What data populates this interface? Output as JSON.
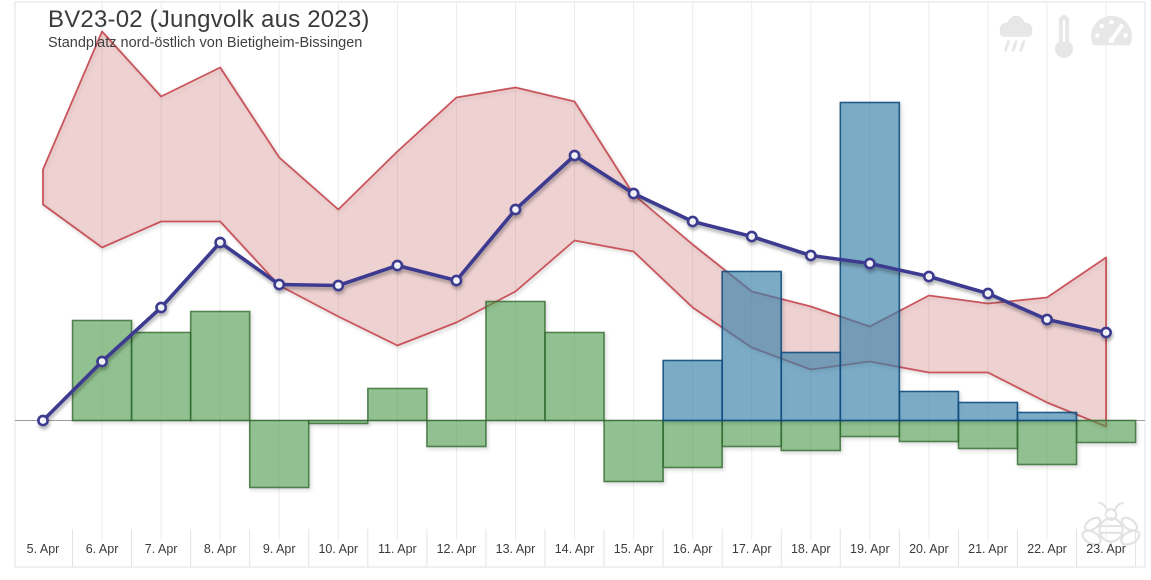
{
  "header": {
    "title": "BV23-02 (Jungvolk aus 2023)",
    "subtitle": "Standplatz nord-östlich von Bietigheim-Bissingen"
  },
  "toolbar": {
    "icons": [
      "rain-icon",
      "thermometer-icon",
      "gauge-icon"
    ]
  },
  "watermark": {
    "icon": "bee-icon"
  },
  "chart_data": {
    "type": "composite",
    "categories": [
      "5. Apr",
      "6. Apr",
      "7. Apr",
      "8. Apr",
      "9. Apr",
      "10. Apr",
      "11. Apr",
      "12. Apr",
      "13. Apr",
      "14. Apr",
      "15. Apr",
      "16. Apr",
      "17. Apr",
      "18. Apr",
      "19. Apr",
      "20. Apr",
      "21. Apr",
      "22. Apr",
      "23. Apr"
    ],
    "y_axis_visible": false,
    "baseline_value": 0,
    "unit_note": "no y-axis labels visible; values are relative chart units above/below the baseline",
    "series": [
      {
        "id": "range-band",
        "type": "area-band",
        "stroke": "#c9545b",
        "fill": "rgba(203,90,95,0.24)",
        "upper": [
          251,
          389,
          324,
          353,
          263,
          211,
          269,
          323,
          333,
          319,
          226,
          176,
          129,
          114,
          94,
          125,
          117,
          123,
          163
        ],
        "lower": [
          216,
          173,
          199,
          199,
          135,
          104,
          75,
          98,
          129,
          180,
          169,
          113,
          73,
          51,
          59,
          48,
          48,
          18,
          -6
        ]
      },
      {
        "id": "green-bars",
        "type": "bar",
        "fill": "rgba(76,158,74,0.55)",
        "stroke": "rgba(47,104,45,0.78)",
        "values": [
          0,
          100,
          88,
          109,
          -67,
          -3,
          32,
          -26,
          119,
          88,
          -61,
          -47,
          -26,
          -30,
          -16,
          -21,
          -28,
          -44,
          -22
        ]
      },
      {
        "id": "blue-bars",
        "type": "bar",
        "fill": "rgba(62,132,175,0.62)",
        "stroke": "rgba(13,74,124,0.88)",
        "values": [
          0,
          0,
          0,
          0,
          0,
          0,
          0,
          0,
          0,
          0,
          0,
          60,
          149,
          68,
          318,
          29,
          18,
          8,
          0
        ]
      },
      {
        "id": "trend-line",
        "type": "line",
        "color": "#3c3a8f",
        "marker_fill": "#ffffff",
        "values": [
          0,
          59,
          113,
          178,
          136,
          135,
          155,
          140,
          211,
          265,
          227,
          199,
          184,
          165,
          157,
          144,
          127,
          101,
          88
        ]
      }
    ]
  }
}
